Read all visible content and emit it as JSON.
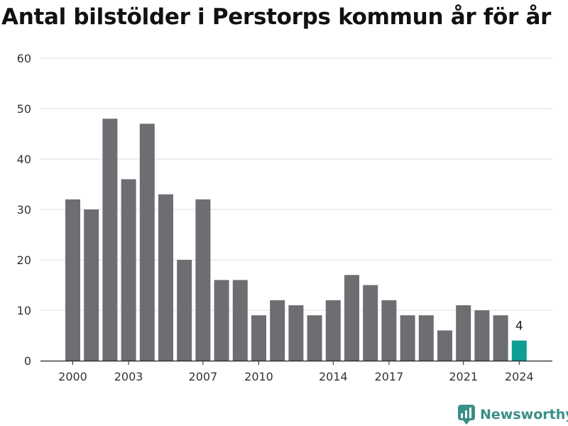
{
  "title": "Antal bilstölder i Perstorps kommun år för år",
  "brand": {
    "name": "Newsworthy",
    "color": "#3a8f86"
  },
  "chart_data": {
    "type": "bar",
    "title": "Antal bilstölder i Perstorps kommun år för år",
    "xlabel": "",
    "ylabel": "",
    "ylim": [
      0,
      60
    ],
    "y_ticks": [
      0,
      10,
      20,
      30,
      40,
      50,
      60
    ],
    "x_tick_labels": [
      "2000",
      "2003",
      "2007",
      "2010",
      "2014",
      "2017",
      "2021",
      "2024"
    ],
    "grid": true,
    "categories": [
      "2000",
      "2001",
      "2002",
      "2003",
      "2004",
      "2005",
      "2006",
      "2007",
      "2008",
      "2009",
      "2010",
      "2011",
      "2012",
      "2013",
      "2014",
      "2015",
      "2016",
      "2017",
      "2018",
      "2019",
      "2020",
      "2021",
      "2022",
      "2023",
      "2024"
    ],
    "values": [
      32,
      30,
      48,
      36,
      47,
      33,
      20,
      32,
      16,
      16,
      9,
      12,
      11,
      9,
      12,
      17,
      15,
      12,
      9,
      9,
      6,
      11,
      10,
      9,
      4
    ],
    "bar_color": "#6e6d72",
    "highlight_color": "#0e9e94",
    "highlight_index": 24,
    "highlight_label": "4"
  }
}
